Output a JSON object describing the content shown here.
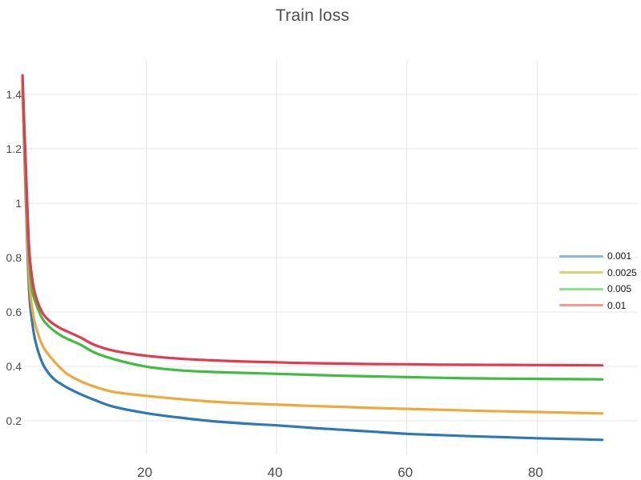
{
  "chart_data": {
    "type": "line",
    "title": "Train loss",
    "xlabel": "",
    "ylabel": "",
    "grid": true,
    "legend_position": "right",
    "axis": {
      "x_range": [
        0,
        95.2
      ],
      "y_range": [
        0.1,
        1.526
      ]
    },
    "x_ticks": [
      {
        "value": 20,
        "label": "20"
      },
      {
        "value": 40,
        "label": "40"
      },
      {
        "value": 60,
        "label": "60"
      },
      {
        "value": 80,
        "label": "80"
      }
    ],
    "y_ticks": [
      {
        "value": 0.2,
        "label": "0.2"
      },
      {
        "value": 0.4,
        "label": "0.4"
      },
      {
        "value": 0.6,
        "label": "0.6"
      },
      {
        "value": 0.8,
        "label": "0.8"
      },
      {
        "value": 1.0,
        "label": "1"
      },
      {
        "value": 1.2,
        "label": "1.2"
      },
      {
        "value": 1.4,
        "label": "1.4"
      }
    ],
    "x": [
      1,
      1.5,
      2,
      2.5,
      3,
      4,
      5,
      6,
      7,
      8,
      10,
      12,
      15,
      20,
      25,
      30,
      35,
      40,
      45,
      50,
      55,
      60,
      65,
      70,
      75,
      80,
      85,
      90
    ],
    "series": [
      {
        "name": "0.001",
        "color": "#2e79b5",
        "legend_color": "#8fb8d6",
        "values": [
          1.42,
          1.02,
          0.68,
          0.56,
          0.49,
          0.415,
          0.375,
          0.35,
          0.334,
          0.32,
          0.297,
          0.277,
          0.253,
          0.23,
          0.214,
          0.201,
          0.192,
          0.185,
          0.176,
          0.168,
          0.16,
          0.152,
          0.147,
          0.142,
          0.138,
          0.134,
          0.131,
          0.128
        ]
      },
      {
        "name": "0.0025",
        "color": "#f0a73c",
        "legend_color": "#d6d47b",
        "values": [
          1.43,
          1.06,
          0.73,
          0.61,
          0.55,
          0.48,
          0.443,
          0.415,
          0.39,
          0.37,
          0.345,
          0.325,
          0.307,
          0.292,
          0.28,
          0.27,
          0.263,
          0.258,
          0.253,
          0.249,
          0.245,
          0.242,
          0.239,
          0.236,
          0.234,
          0.232,
          0.23,
          0.228
        ]
      },
      {
        "name": "0.005",
        "color": "#3ebd41",
        "legend_color": "#8fdf8c",
        "values": [
          1.45,
          1.1,
          0.8,
          0.68,
          0.635,
          0.578,
          0.548,
          0.528,
          0.512,
          0.5,
          0.478,
          0.452,
          0.425,
          0.397,
          0.384,
          0.378,
          0.375,
          0.372,
          0.369,
          0.366,
          0.364,
          0.362,
          0.36,
          0.358,
          0.357,
          0.356,
          0.355,
          0.354
        ]
      },
      {
        "name": "0.01",
        "color": "#e23b50",
        "legend_color": "#f29b8e",
        "values": [
          1.47,
          1.14,
          0.84,
          0.72,
          0.66,
          0.6,
          0.57,
          0.552,
          0.538,
          0.527,
          0.505,
          0.48,
          0.458,
          0.44,
          0.43,
          0.424,
          0.42,
          0.417,
          0.414,
          0.412,
          0.41,
          0.409,
          0.407,
          0.406,
          0.405,
          0.404,
          0.403,
          0.402
        ]
      }
    ],
    "colors": {
      "background": "#ffffff",
      "grid": "#e7e7e7",
      "tick_label": "#4a4a4a",
      "title": "#4d4d4d",
      "legend_label": "#141414"
    }
  }
}
